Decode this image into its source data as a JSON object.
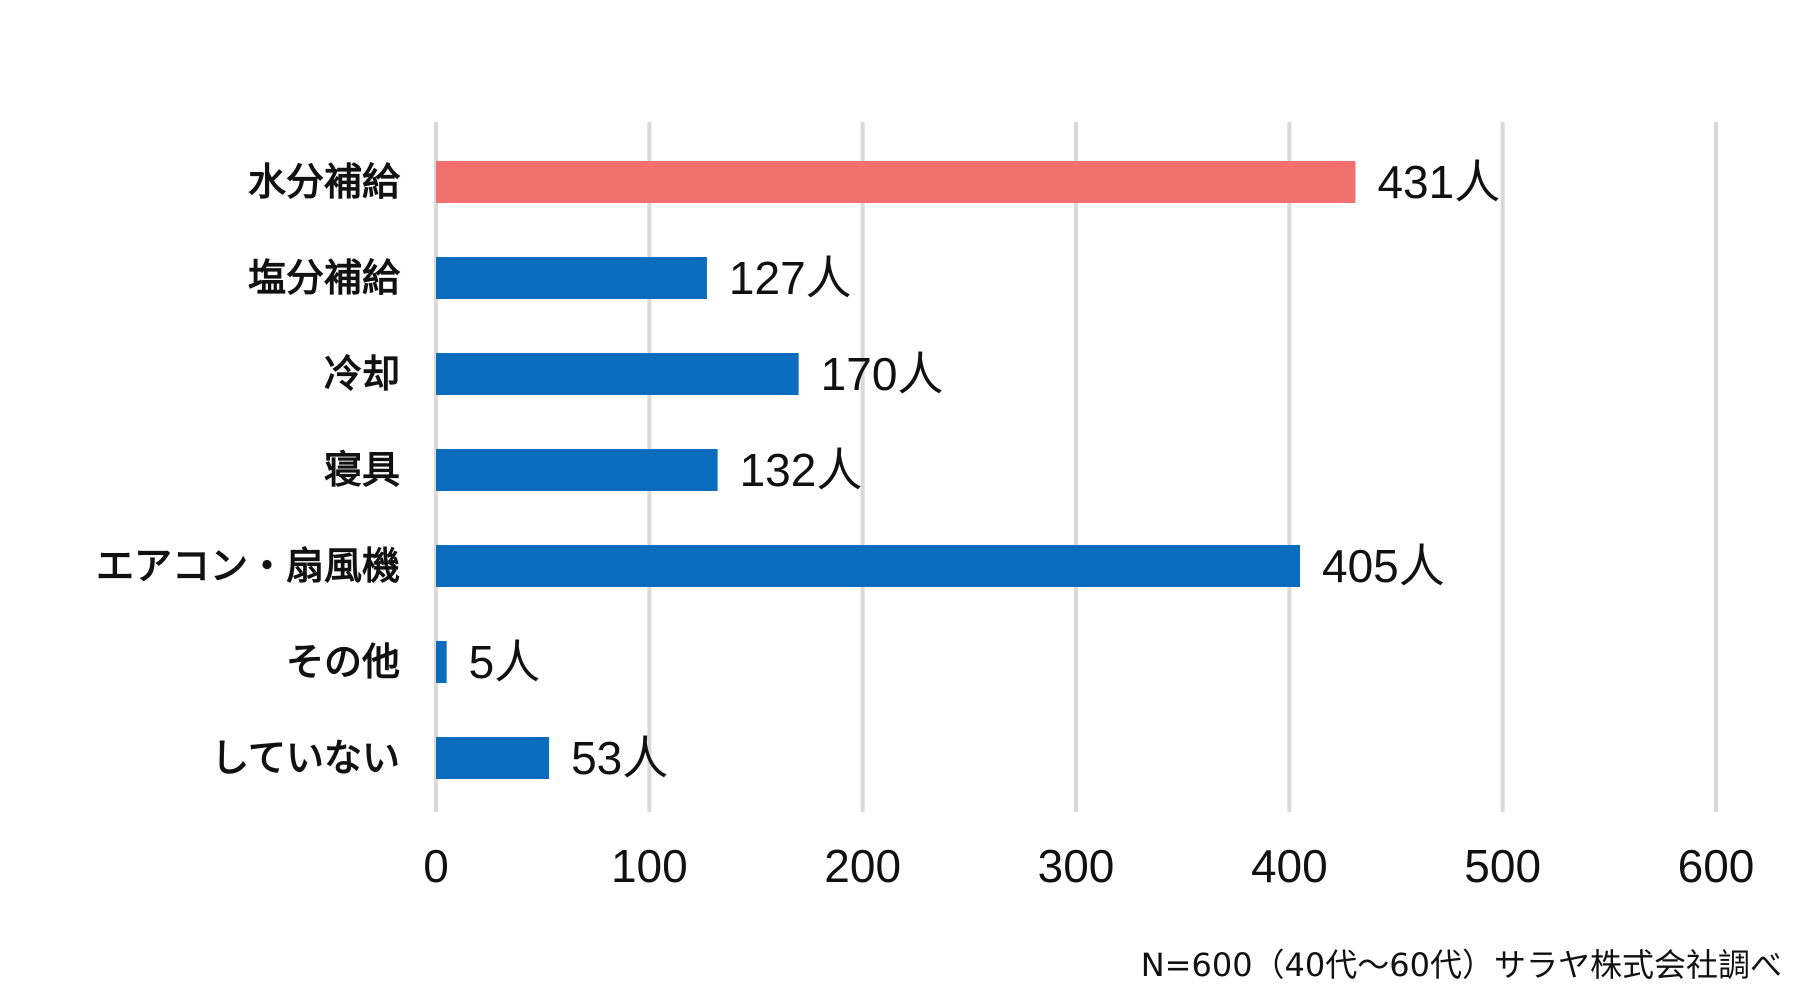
{
  "chart_data": {
    "type": "bar",
    "orientation": "horizontal",
    "categories": [
      "水分補給",
      "塩分補給",
      "冷却",
      "寝具",
      "エアコン・扇風機",
      "その他",
      "していない"
    ],
    "values": [
      431,
      127,
      170,
      132,
      405,
      5,
      53
    ],
    "value_labels": [
      "431人",
      "127人",
      "170人",
      "132人",
      "405人",
      "5人",
      "53人"
    ],
    "highlight_index": 0,
    "colors": {
      "highlight": "#f07070",
      "default": "#0a6cbd"
    },
    "xlim": [
      0,
      600
    ],
    "xticks": [
      0,
      100,
      200,
      300,
      400,
      500,
      600
    ],
    "grid": "vertical",
    "title": "",
    "xlabel": "",
    "ylabel": ""
  },
  "source_note": "N=600（40代～60代）サラヤ株式会社調べ"
}
